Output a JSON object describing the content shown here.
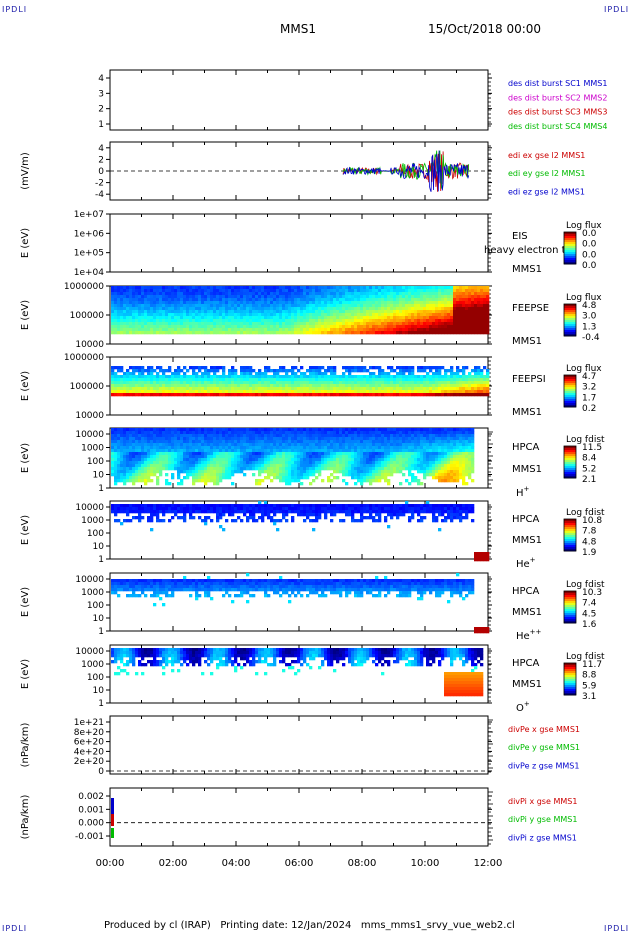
{
  "header": {
    "corner_tl": "IPDLI",
    "corner_tr": "IPDLI",
    "corner_bl": "IPDLI",
    "corner_br": "IPDLI",
    "mission": "MMS1",
    "datetime": "15/Oct/2018 00:00"
  },
  "footer": {
    "text": "Produced by cl (IRAP)   Printing date: 12/Jan/2024   mms_mms1_srvy_vue_web2.cl"
  },
  "colors": {
    "blue": "#0000cc",
    "magenta": "#cc00cc",
    "red": "#cc0000",
    "green": "#00bb00"
  },
  "chart_data": [
    {
      "type": "line",
      "panel": "dist",
      "xlim": [
        "00:00",
        "12:00"
      ],
      "ylim": [
        0.5,
        4.5
      ],
      "yticks": [
        "1",
        "2",
        "3",
        "4"
      ],
      "legend": [
        {
          "label": "des dist burst SC1 MMS1",
          "color": "#0000cc"
        },
        {
          "label": "des dist burst SC2 MMS2",
          "color": "#cc00cc"
        },
        {
          "label": "des dist burst SC3 MMS3",
          "color": "#cc0000"
        },
        {
          "label": "des dist burst SC4 MMS4",
          "color": "#00bb00"
        }
      ]
    },
    {
      "type": "line",
      "panel": "efield",
      "ylabel": "(mV/m)",
      "ylim": [
        -5,
        5
      ],
      "yticks": [
        "4",
        "2",
        "0",
        "-2",
        "-4"
      ],
      "data_start_hour": 7.4,
      "data_end_hour": 11.4,
      "legend": [
        {
          "label": "edi ex gse l2 MMS1",
          "color": "#cc0000"
        },
        {
          "label": "edi ey gse l2 MMS1",
          "color": "#00bb00"
        },
        {
          "label": "edi ez gse l2 MMS1",
          "color": "#0000cc"
        }
      ]
    },
    {
      "type": "heatmap",
      "panel": "eis",
      "ylabel": "E (eV)",
      "yticks": [
        "1e+07",
        "1e+06",
        "1e+05",
        "1e+04"
      ],
      "instrument": "EIS",
      "sublabel": "heavy electron to",
      "spacecraft": "MMS1",
      "colorbar_title": "Log flux",
      "colorbar_ticks": [
        "0.0",
        "0.0",
        "0.0",
        "0.0"
      ]
    },
    {
      "type": "heatmap",
      "panel": "feepse",
      "ylabel": "E (eV)",
      "yticks": [
        "1000000",
        "100000",
        "10000"
      ],
      "instrument": "FEEPSE",
      "spacecraft": "MMS1",
      "colorbar_title": "Log flux",
      "colorbar_ticks": [
        "4.8",
        "3.0",
        "1.3",
        "-0.4"
      ]
    },
    {
      "type": "heatmap",
      "panel": "feepsi",
      "ylabel": "E (eV)",
      "yticks": [
        "1000000",
        "100000",
        "10000"
      ],
      "instrument": "FEEPSI",
      "spacecraft": "MMS1",
      "colorbar_title": "Log flux",
      "colorbar_ticks": [
        "4.7",
        "3.2",
        "1.7",
        "0.2"
      ]
    },
    {
      "type": "heatmap",
      "panel": "hpca_h",
      "ylabel": "E (eV)",
      "yticks": [
        "10000",
        "1000",
        "100",
        "10",
        "1"
      ],
      "instrument": "HPCA",
      "spacecraft": "MMS1",
      "species": "H",
      "species_sup": "+",
      "colorbar_title": "Log fdist",
      "colorbar_ticks": [
        "11.5",
        "8.4",
        "5.2",
        "2.1"
      ]
    },
    {
      "type": "heatmap",
      "panel": "hpca_he",
      "ylabel": "E (eV)",
      "yticks": [
        "10000",
        "1000",
        "100",
        "10",
        "1"
      ],
      "instrument": "HPCA",
      "spacecraft": "MMS1",
      "species": "He",
      "species_sup": "+",
      "colorbar_title": "Log fdist",
      "colorbar_ticks": [
        "10.8",
        "7.8",
        "4.8",
        "1.9"
      ]
    },
    {
      "type": "heatmap",
      "panel": "hpca_hepp",
      "ylabel": "E (eV)",
      "yticks": [
        "10000",
        "1000",
        "100",
        "10",
        "1"
      ],
      "instrument": "HPCA",
      "spacecraft": "MMS1",
      "species": "He",
      "species_sup": "++",
      "colorbar_title": "Log fdist",
      "colorbar_ticks": [
        "10.3",
        "7.4",
        "4.5",
        "1.6"
      ]
    },
    {
      "type": "heatmap",
      "panel": "hpca_o",
      "ylabel": "E (eV)",
      "yticks": [
        "10000",
        "1000",
        "100",
        "10",
        "1"
      ],
      "instrument": "HPCA",
      "spacecraft": "MMS1",
      "species": "O",
      "species_sup": "+",
      "colorbar_title": "Log fdist",
      "colorbar_ticks": [
        "11.7",
        "8.8",
        "5.9",
        "3.1"
      ]
    },
    {
      "type": "line",
      "panel": "divpe",
      "ylabel": "(nPa/km)",
      "yticks": [
        "1e+21",
        "8e+20",
        "6e+20",
        "4e+20",
        "2e+20",
        "0"
      ],
      "legend": [
        {
          "label": "divPe x gse MMS1",
          "color": "#cc0000"
        },
        {
          "label": "divPe y gse MMS1",
          "color": "#00bb00"
        },
        {
          "label": "divPe z gse MMS1",
          "color": "#0000cc"
        }
      ]
    },
    {
      "type": "line",
      "panel": "divpi",
      "ylabel": "(nPa/km)",
      "yticks": [
        "0.002",
        "0.001",
        "0.000",
        "-0.001"
      ],
      "legend": [
        {
          "label": "divPi x gse MMS1",
          "color": "#cc0000"
        },
        {
          "label": "divPi y gse MMS1",
          "color": "#00bb00"
        },
        {
          "label": "divPi z gse MMS1",
          "color": "#0000cc"
        }
      ]
    }
  ],
  "x_axis": {
    "ticks": [
      "00:00",
      "02:00",
      "04:00",
      "06:00",
      "08:00",
      "10:00",
      "12:00"
    ]
  }
}
